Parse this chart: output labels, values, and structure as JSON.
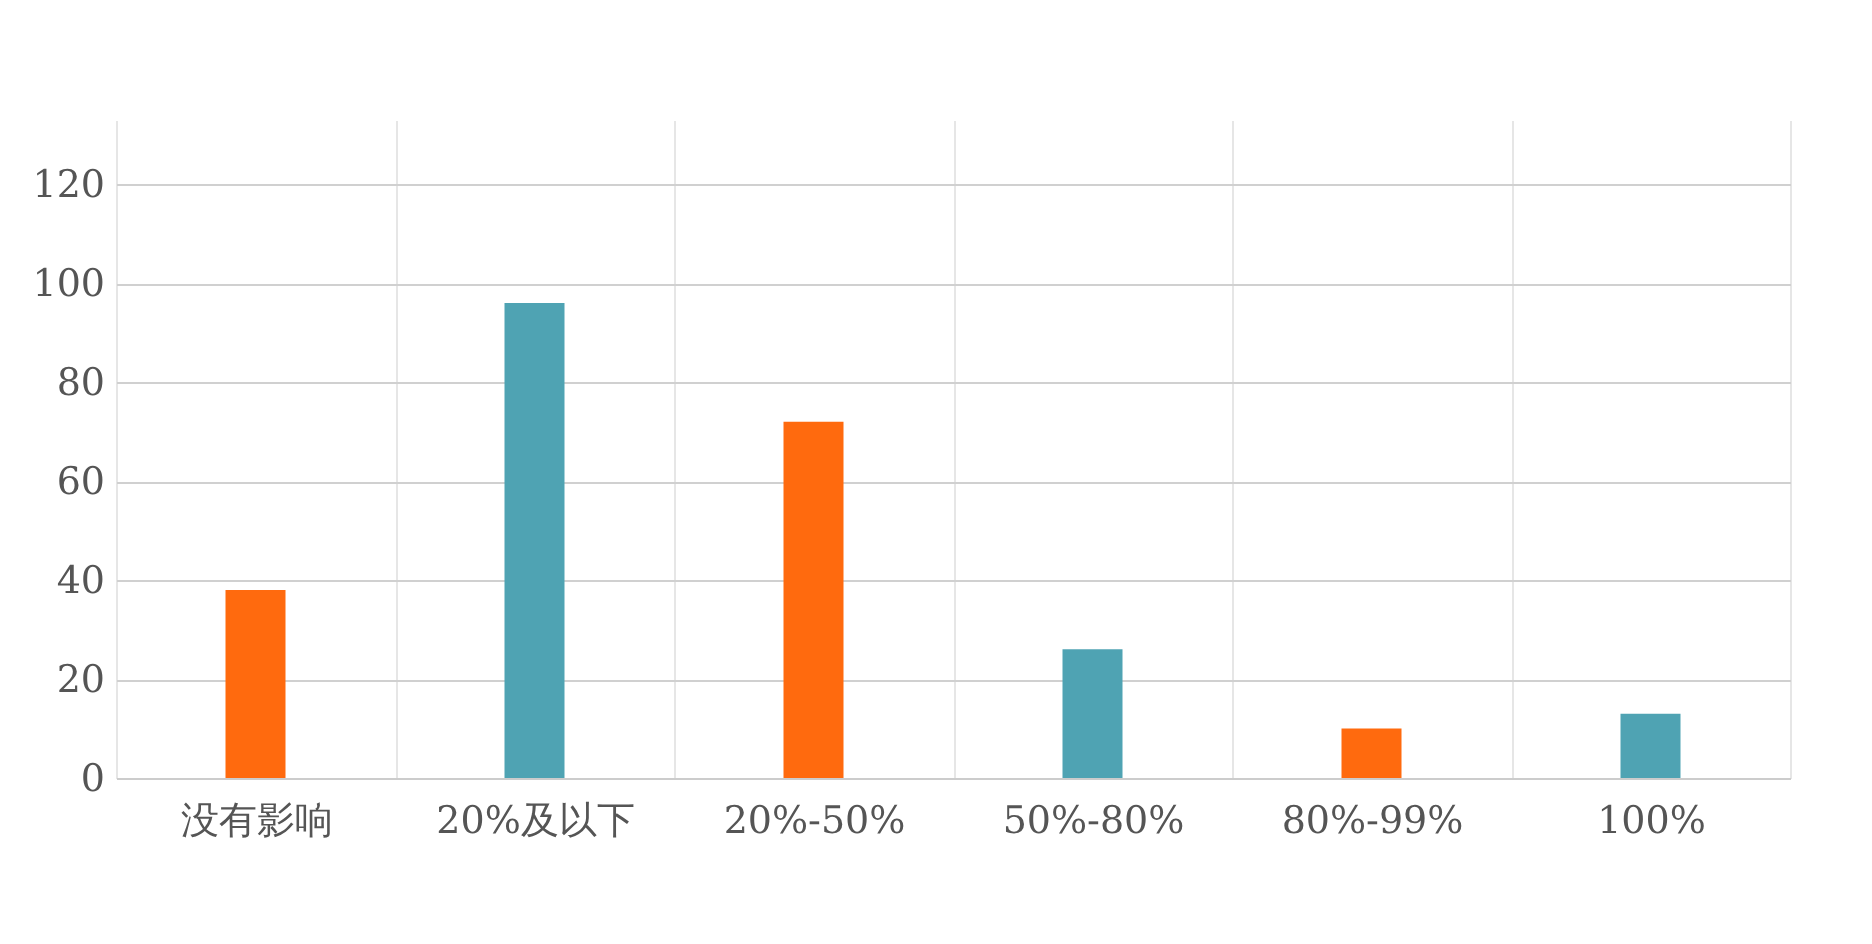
{
  "chart_data": {
    "type": "bar",
    "categories": [
      "没有影响",
      "20%及以下",
      "20%-50%",
      "50%-80%",
      "80%-99%",
      "100%"
    ],
    "values": [
      38,
      96,
      72,
      26,
      10,
      13
    ],
    "colors": [
      "#ff6a0e",
      "#4fa3b3",
      "#ff6a0e",
      "#4fa3b3",
      "#ff6a0e",
      "#4fa3b3"
    ],
    "ylim": [
      0,
      133
    ],
    "yticks": [
      0,
      20,
      40,
      60,
      80,
      100,
      120
    ],
    "grid": true
  }
}
